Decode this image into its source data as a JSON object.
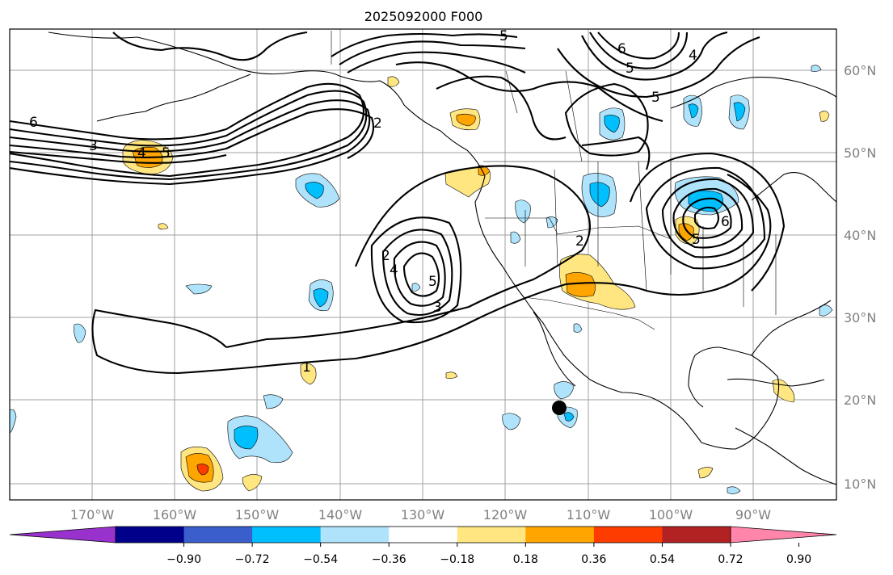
{
  "title": "2025092000 F000",
  "lat_labels": [
    "60°N",
    "50°N",
    "40°N",
    "30°N",
    "20°N",
    "10°N"
  ],
  "lon_labels": [
    "170°W",
    "160°W",
    "150°W",
    "140°W",
    "130°W",
    "120°W",
    "110°W",
    "100°W",
    "90°W"
  ],
  "contour_labels": [
    "6",
    "3",
    "4",
    "5",
    "2",
    "5",
    "6",
    "5",
    "4",
    "5",
    "2",
    "4",
    "5",
    "3",
    "2",
    "1",
    "5",
    "6"
  ],
  "colorbar": {
    "levels": [
      "−0.90",
      "−0.72",
      "−0.54",
      "−0.36",
      "−0.18",
      "0.18",
      "0.36",
      "0.54",
      "0.72",
      "0.90"
    ],
    "colors": [
      "#9932cc",
      "#00008b",
      "#3a5fcd",
      "#00bfff",
      "#aee3fb",
      "#ffffff",
      "#ffe680",
      "#ffa500",
      "#ff3c00",
      "#b22222",
      "#ff85aa"
    ]
  },
  "colors": {
    "light_blue": "#aee3fb",
    "blue": "#00bfff",
    "yellow": "#ffe680",
    "orange": "#ffa500",
    "red_orange": "#ff3c00"
  }
}
